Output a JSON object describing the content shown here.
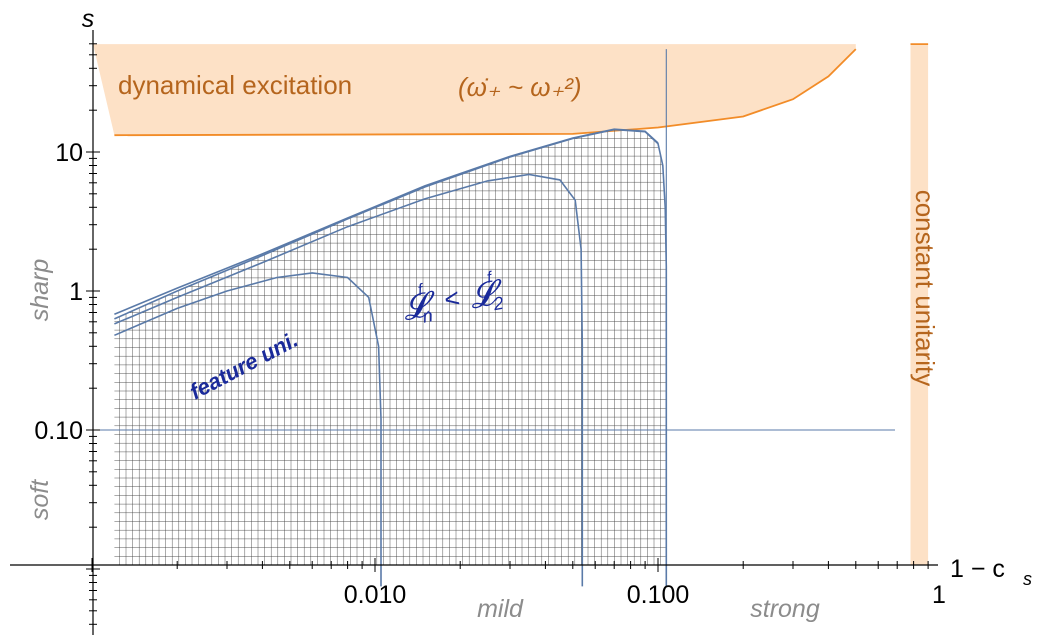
{
  "chart_data": {
    "type": "area",
    "xlabel": "1 − c",
    "xlabel_sub": "s",
    "ylabel": "s",
    "x_scale": "log",
    "y_scale": "log",
    "xlim": [
      0.0012,
      1.15
    ],
    "ylim": [
      0.0075,
      55
    ],
    "x_ticks": [
      {
        "value": 0.01,
        "label": "0.010"
      },
      {
        "value": 0.1,
        "label": "0.100"
      },
      {
        "value": 1,
        "label": "1"
      }
    ],
    "y_ticks": [
      {
        "value": 0.1,
        "label": "0.10"
      },
      {
        "value": 1,
        "label": "1"
      },
      {
        "value": 10,
        "label": "10"
      }
    ],
    "regions": {
      "dynamical_excitation": {
        "label": "dynamical excitation",
        "formula": "(ω̇₊ ~ ω₊²)",
        "color": "#fde1c6",
        "border": "#f28c28"
      },
      "constant_unitarity": {
        "label": "constant unitarity",
        "x_range": [
          0.78,
          0.9
        ],
        "color": "#fde1c6",
        "border": "#f28c28"
      },
      "feature_unitarity": {
        "label": "feature uni.",
        "color": "#1a2a9a"
      },
      "lagrangian_condition": {
        "label": "𝓛ⁿᶠ < 𝓛₂ᶠ",
        "main": "𝓛",
        "sup_left": "f",
        "sub_left": "n",
        "sup_right": "f",
        "sub_right": "2",
        "op": "<",
        "color": "#1a2a9a"
      }
    },
    "regime_labels": {
      "y": [
        "sharp",
        "soft"
      ],
      "x": [
        "mild",
        "strong"
      ]
    },
    "series": [
      {
        "x_end": 0.0105,
        "points": [
          [
            0.0012,
            0.48
          ],
          [
            0.002,
            0.75
          ],
          [
            0.003,
            1.0
          ],
          [
            0.0045,
            1.25
          ],
          [
            0.006,
            1.35
          ],
          [
            0.008,
            1.25
          ],
          [
            0.0095,
            0.9
          ],
          [
            0.0103,
            0.4
          ],
          [
            0.0105,
            0.12
          ],
          [
            0.0105,
            0.0075
          ]
        ]
      },
      {
        "x_end": 0.054,
        "points": [
          [
            0.0012,
            0.58
          ],
          [
            0.002,
            0.9
          ],
          [
            0.004,
            1.6
          ],
          [
            0.008,
            2.9
          ],
          [
            0.015,
            4.6
          ],
          [
            0.025,
            6.2
          ],
          [
            0.035,
            6.9
          ],
          [
            0.045,
            6.3
          ],
          [
            0.051,
            4.5
          ],
          [
            0.0535,
            2.0
          ],
          [
            0.054,
            0.4
          ],
          [
            0.054,
            0.0075
          ]
        ]
      },
      {
        "x_end": 0.107,
        "points": [
          [
            0.0012,
            0.63
          ],
          [
            0.002,
            1.0
          ],
          [
            0.004,
            1.8
          ],
          [
            0.008,
            3.3
          ],
          [
            0.015,
            5.6
          ],
          [
            0.03,
            9.2
          ],
          [
            0.05,
            12.5
          ],
          [
            0.07,
            14.5
          ],
          [
            0.09,
            14.0
          ],
          [
            0.1,
            11.5
          ],
          [
            0.104,
            8.0
          ],
          [
            0.106,
            4.0
          ],
          [
            0.107,
            1.5
          ],
          [
            0.107,
            0.0075
          ]
        ]
      },
      {
        "x_end": 0.107,
        "points": [
          [
            0.0012,
            0.68
          ],
          [
            0.002,
            1.05
          ],
          [
            0.004,
            1.85
          ],
          [
            0.008,
            3.35
          ],
          [
            0.015,
            5.7
          ],
          [
            0.03,
            9.3
          ],
          [
            0.05,
            12.6
          ],
          [
            0.07,
            14.6
          ],
          [
            0.09,
            14.1
          ],
          [
            0.1,
            11.6
          ]
        ]
      }
    ],
    "dynamical_boundary": [
      [
        0.0012,
        13.2
      ],
      [
        0.05,
        13.5
      ],
      [
        0.1,
        15
      ],
      [
        0.2,
        18
      ],
      [
        0.3,
        24
      ],
      [
        0.4,
        35
      ],
      [
        0.5,
        55
      ]
    ],
    "reference_lines": {
      "horizontal_s": 0.1,
      "vertical_x": 0.107
    },
    "grid": "hatched region under curves",
    "legend": "none"
  }
}
